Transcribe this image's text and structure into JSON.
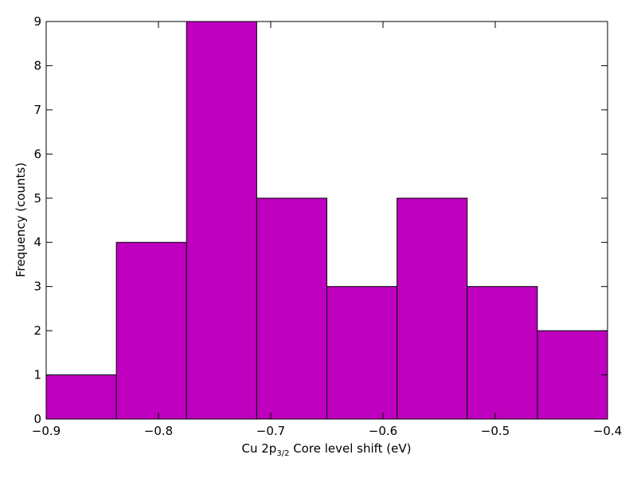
{
  "chart_data": {
    "type": "bar",
    "subtype": "histogram",
    "title": "",
    "xlabel": {
      "prefix": "Cu 2p",
      "subscript": "3/2",
      "suffix": " Core level shift (eV)"
    },
    "ylabel": "Frequency (counts)",
    "xlim": [
      -0.9,
      -0.4
    ],
    "ylim": [
      0,
      9
    ],
    "bin_edges": [
      -0.9,
      -0.8375,
      -0.775,
      -0.7125,
      -0.65,
      -0.5875,
      -0.525,
      -0.4625,
      -0.4
    ],
    "values": [
      1,
      4,
      9,
      5,
      3,
      5,
      3,
      2
    ],
    "x_ticks": [
      {
        "value": -0.9,
        "label": "−0.9"
      },
      {
        "value": -0.8,
        "label": "−0.8"
      },
      {
        "value": -0.7,
        "label": "−0.7"
      },
      {
        "value": -0.6,
        "label": "−0.6"
      },
      {
        "value": -0.5,
        "label": "−0.5"
      },
      {
        "value": -0.4,
        "label": "−0.4"
      }
    ],
    "y_ticks": [
      {
        "value": 0,
        "label": "0"
      },
      {
        "value": 1,
        "label": "1"
      },
      {
        "value": 2,
        "label": "2"
      },
      {
        "value": 3,
        "label": "3"
      },
      {
        "value": 4,
        "label": "4"
      },
      {
        "value": 5,
        "label": "5"
      },
      {
        "value": 6,
        "label": "6"
      },
      {
        "value": 7,
        "label": "7"
      },
      {
        "value": 8,
        "label": "8"
      },
      {
        "value": 9,
        "label": "9"
      }
    ],
    "bar_color": "#bf00bf",
    "edge_color": "#000000",
    "grid": false,
    "legend": "none"
  }
}
